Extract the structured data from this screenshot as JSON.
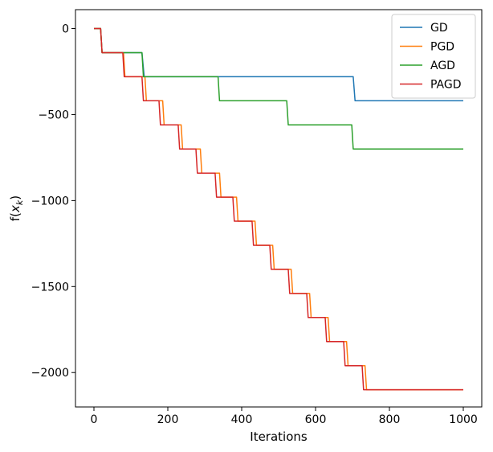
{
  "chart_data": {
    "type": "line",
    "xlabel": "Iterations",
    "ylabel": "f(x_k)",
    "ylabel_display": {
      "base": "f(",
      "sub_var": "x",
      "sub_index": "k",
      "close": ")"
    },
    "xlim": [
      -50,
      1050
    ],
    "ylim": [
      -2200,
      110
    ],
    "xticks": [
      0,
      200,
      400,
      600,
      800,
      1000
    ],
    "xtick_labels": [
      "0",
      "200",
      "400",
      "600",
      "800",
      "1000"
    ],
    "yticks": [
      0,
      -500,
      -1000,
      -1500,
      -2000
    ],
    "ytick_labels": [
      "0",
      "−500",
      "−1000",
      "−1500",
      "−2000"
    ],
    "grid": false,
    "legend_position": "top-right",
    "series": [
      {
        "name": "GD",
        "color": "#1f77b4",
        "x": [
          0,
          18,
          22,
          130,
          136,
          702,
          707,
          1000
        ],
        "y": [
          0,
          0,
          -140,
          -140,
          -280,
          -280,
          -420,
          -420
        ]
      },
      {
        "name": "PGD",
        "color": "#ff7f0e",
        "x": [
          0,
          18,
          22,
          80,
          84,
          138,
          142,
          186,
          190,
          236,
          240,
          288,
          292,
          340,
          344,
          386,
          390,
          436,
          440,
          484,
          488,
          534,
          538,
          584,
          588,
          634,
          638,
          684,
          688,
          734,
          738,
          1000
        ],
        "y": [
          0,
          0,
          -140,
          -140,
          -280,
          -280,
          -420,
          -420,
          -560,
          -560,
          -700,
          -700,
          -840,
          -840,
          -980,
          -980,
          -1120,
          -1120,
          -1260,
          -1260,
          -1400,
          -1400,
          -1540,
          -1540,
          -1680,
          -1680,
          -1820,
          -1820,
          -1960,
          -1960,
          -2100,
          -2100
        ]
      },
      {
        "name": "AGD",
        "color": "#2ca02c",
        "x": [
          0,
          18,
          22,
          130,
          134,
          336,
          340,
          522,
          526,
          698,
          702,
          1000
        ],
        "y": [
          0,
          0,
          -140,
          -140,
          -280,
          -280,
          -420,
          -420,
          -560,
          -560,
          -700,
          -700
        ]
      },
      {
        "name": "PAGD",
        "color": "#d62728",
        "x": [
          0,
          18,
          22,
          78,
          82,
          130,
          134,
          176,
          180,
          228,
          232,
          276,
          280,
          328,
          332,
          376,
          380,
          428,
          432,
          476,
          480,
          526,
          530,
          576,
          580,
          626,
          630,
          676,
          680,
          726,
          730,
          1000
        ],
        "y": [
          0,
          0,
          -140,
          -140,
          -280,
          -280,
          -420,
          -420,
          -560,
          -560,
          -700,
          -700,
          -840,
          -840,
          -980,
          -980,
          -1120,
          -1120,
          -1260,
          -1260,
          -1400,
          -1400,
          -1540,
          -1540,
          -1680,
          -1680,
          -1820,
          -1820,
          -1960,
          -1960,
          -2100,
          -2100
        ]
      }
    ]
  }
}
